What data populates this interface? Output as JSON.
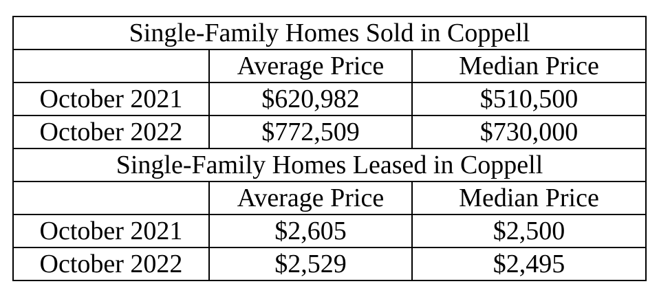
{
  "sections": [
    {
      "title": "Single-Family Homes Sold in Coppell",
      "headers": [
        "",
        "Average Price",
        "Median Price"
      ],
      "rows": [
        {
          "label": "October 2021",
          "average": "$620,982",
          "median": "$510,500"
        },
        {
          "label": "October 2022",
          "average": "$772,509",
          "median": "$730,000"
        }
      ]
    },
    {
      "title": "Single-Family Homes Leased in Coppell",
      "headers": [
        "",
        "Average Price",
        "Median Price"
      ],
      "rows": [
        {
          "label": "October 2021",
          "average": "$2,605",
          "median": "$2,500"
        },
        {
          "label": "October 2022",
          "average": "$2,529",
          "median": "$2,495"
        }
      ]
    }
  ]
}
